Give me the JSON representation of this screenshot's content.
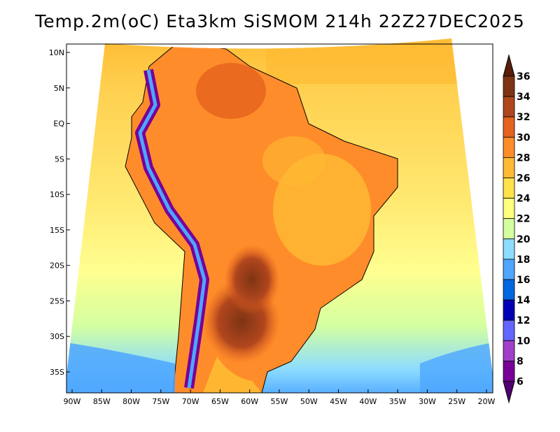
{
  "title": "Temp.2m(oC) Eta3km SiSMOM 214h 22Z27DEC2025",
  "map": {
    "lat_labels": [
      "10N",
      "5N",
      "EQ",
      "5S",
      "10S",
      "15S",
      "20S",
      "25S",
      "30S",
      "35S"
    ],
    "lat_values": [
      10,
      5,
      0,
      -5,
      -10,
      -15,
      -20,
      -25,
      -30,
      -35
    ],
    "lon_labels": [
      "90W",
      "85W",
      "80W",
      "75W",
      "70W",
      "65W",
      "60W",
      "55W",
      "50W",
      "45W",
      "40W",
      "35W",
      "30W",
      "25W",
      "20W"
    ],
    "lon_values": [
      -90,
      -85,
      -80,
      -75,
      -70,
      -65,
      -60,
      -55,
      -50,
      -45,
      -40,
      -35,
      -30,
      -25,
      -20
    ]
  },
  "colorbar": {
    "labels": [
      "36",
      "34",
      "32",
      "30",
      "28",
      "26",
      "24",
      "22",
      "20",
      "18",
      "16",
      "14",
      "12",
      "10",
      "8",
      "6"
    ],
    "colors": [
      "#5a1e0a",
      "#7e3414",
      "#b0461e",
      "#e5621e",
      "#ff8c2a",
      "#ffbb33",
      "#ffe14a",
      "#ffff80",
      "#d4ffa0",
      "#8cdcff",
      "#4ea6ff",
      "#0066e0",
      "#0000b4",
      "#6464ff",
      "#a040c8",
      "#780096",
      "#500070"
    ]
  }
}
